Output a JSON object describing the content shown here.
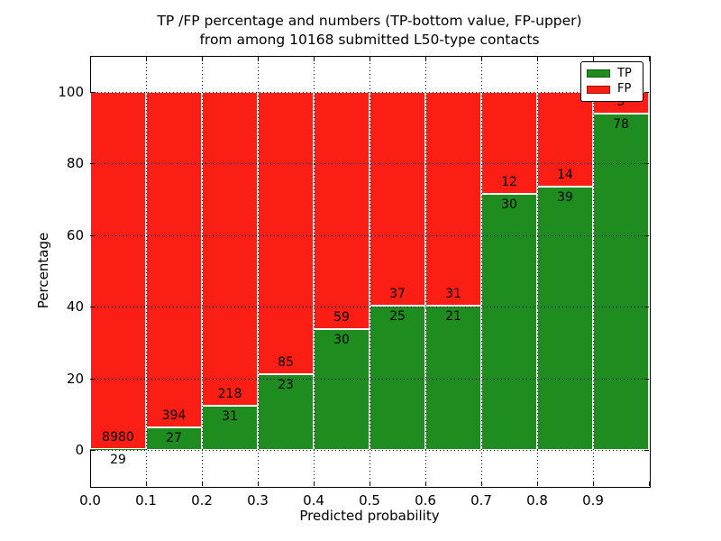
{
  "figure": {
    "title_line1": "TP /FP percentage and numbers (TP-bottom value, FP-upper)",
    "title_line2": "from among 10168 submitted L50-type contacts",
    "background": "#ffffff"
  },
  "chart_data": {
    "type": "bar",
    "stacked": true,
    "normalized_to_percent": true,
    "title": "TP /FP percentage and numbers (TP-bottom value, FP-upper)\nfrom among 10168 submitted L50-type contacts",
    "total_contacts": 10168,
    "xlabel": "Predicted probability",
    "ylabel": "Percentage",
    "xlim": [
      0.0,
      1.0
    ],
    "ylim": [
      -10,
      110
    ],
    "xtick_values": [
      0.0,
      0.1,
      0.2,
      0.3,
      0.4,
      0.5,
      0.6,
      0.7,
      0.8,
      0.9
    ],
    "xticks": [
      "0.0",
      "0.1",
      "0.2",
      "0.3",
      "0.4",
      "0.5",
      "0.6",
      "0.7",
      "0.8",
      "0.9"
    ],
    "ytick_values": [
      0,
      20,
      40,
      60,
      80,
      100
    ],
    "yticks": [
      "0",
      "20",
      "40",
      "60",
      "80",
      "100"
    ],
    "grid": {
      "enabled": true,
      "style": "dotted",
      "color": "#000000"
    },
    "legend_position": "upper right",
    "legend": [
      {
        "label": "TP",
        "color": "#1e8c1e"
      },
      {
        "label": "FP",
        "color": "#fa1e14"
      }
    ],
    "colors": {
      "tp_green": "#1e8c1e",
      "fp_red": "#fa1e14",
      "bar_edge": "#ffffff"
    },
    "bins": [
      {
        "x_start": 0.0,
        "x_end": 0.1,
        "tp_count": 29,
        "fp_count": 8980,
        "tp_percent": 0.32,
        "fp_percent": 99.68
      },
      {
        "x_start": 0.1,
        "x_end": 0.2,
        "tp_count": 27,
        "fp_count": 394,
        "tp_percent": 6.41,
        "fp_percent": 93.59
      },
      {
        "x_start": 0.2,
        "x_end": 0.3,
        "tp_count": 31,
        "fp_count": 218,
        "tp_percent": 12.45,
        "fp_percent": 87.55
      },
      {
        "x_start": 0.3,
        "x_end": 0.4,
        "tp_count": 23,
        "fp_count": 85,
        "tp_percent": 21.3,
        "fp_percent": 78.7
      },
      {
        "x_start": 0.4,
        "x_end": 0.5,
        "tp_count": 30,
        "fp_count": 59,
        "tp_percent": 33.71,
        "fp_percent": 66.29
      },
      {
        "x_start": 0.5,
        "x_end": 0.6,
        "tp_count": 25,
        "fp_count": 37,
        "tp_percent": 40.32,
        "fp_percent": 59.68
      },
      {
        "x_start": 0.6,
        "x_end": 0.7,
        "tp_count": 21,
        "fp_count": 31,
        "tp_percent": 40.38,
        "fp_percent": 59.62
      },
      {
        "x_start": 0.7,
        "x_end": 0.8,
        "tp_count": 30,
        "fp_count": 12,
        "tp_percent": 71.43,
        "fp_percent": 28.57
      },
      {
        "x_start": 0.8,
        "x_end": 0.9,
        "tp_count": 39,
        "fp_count": 14,
        "tp_percent": 73.58,
        "fp_percent": 26.42
      },
      {
        "x_start": 0.9,
        "x_end": 1.0,
        "tp_count": 78,
        "fp_count": 5,
        "tp_percent": 93.98,
        "fp_percent": 6.02
      }
    ]
  }
}
